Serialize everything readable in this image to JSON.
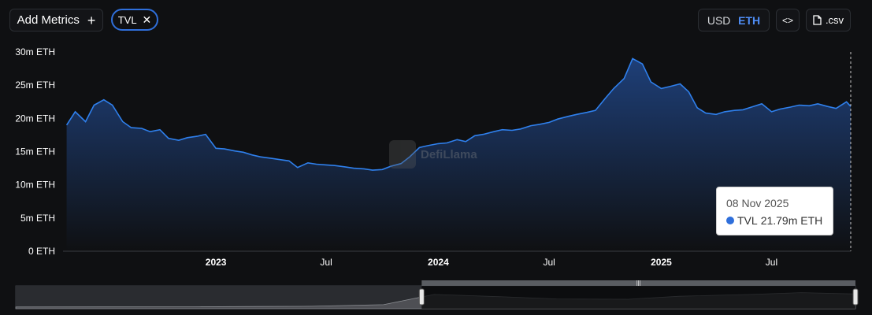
{
  "toolbar": {
    "add_metrics_label": "Add Metrics",
    "plus_glyph": "+",
    "metric_chip_label": "TVL",
    "remove_glyph": "✕",
    "currency_usd": "USD",
    "currency_eth": "ETH",
    "embed_glyph": "<>",
    "csv_label": ".csv"
  },
  "watermark_text": "DefiLlama",
  "tooltip": {
    "date": "08 Nov 2025",
    "series_name": "TVL",
    "value": "21.79m ETH"
  },
  "colors": {
    "line": "#2f80ed",
    "area_top": "#1e3f78",
    "area_bottom": "#0f1012",
    "accent": "#4f8ef7"
  },
  "chart_data": {
    "type": "area",
    "series": [
      {
        "name": "TVL",
        "unit": "m ETH",
        "x": [
          "2022-05-01",
          "2022-05-15",
          "2022-06-01",
          "2022-06-15",
          "2022-07-01",
          "2022-07-15",
          "2022-08-01",
          "2022-08-15",
          "2022-09-01",
          "2022-09-15",
          "2022-10-01",
          "2022-10-15",
          "2022-11-01",
          "2022-11-15",
          "2022-12-01",
          "2022-12-15",
          "2023-01-01",
          "2023-01-15",
          "2023-02-01",
          "2023-02-15",
          "2023-03-01",
          "2023-03-15",
          "2023-04-01",
          "2023-04-15",
          "2023-05-01",
          "2023-05-15",
          "2023-06-01",
          "2023-06-15",
          "2023-07-01",
          "2023-07-15",
          "2023-08-01",
          "2023-08-15",
          "2023-09-01",
          "2023-09-15",
          "2023-10-01",
          "2023-10-15",
          "2023-11-01",
          "2023-11-15",
          "2023-12-01",
          "2023-12-15",
          "2024-01-01",
          "2024-01-15",
          "2024-02-01",
          "2024-02-15",
          "2024-03-01",
          "2024-03-15",
          "2024-04-01",
          "2024-04-15",
          "2024-05-01",
          "2024-05-15",
          "2024-06-01",
          "2024-06-15",
          "2024-07-01",
          "2024-07-15",
          "2024-08-01",
          "2024-08-15",
          "2024-09-01",
          "2024-09-15",
          "2024-10-01",
          "2024-10-15",
          "2024-11-01",
          "2024-11-15",
          "2024-12-01",
          "2024-12-15",
          "2025-01-01",
          "2025-01-15",
          "2025-02-01",
          "2025-02-15",
          "2025-03-01",
          "2025-03-15",
          "2025-04-01",
          "2025-04-15",
          "2025-05-01",
          "2025-05-15",
          "2025-06-01",
          "2025-06-15",
          "2025-07-01",
          "2025-07-15",
          "2025-08-01",
          "2025-08-15",
          "2025-09-01",
          "2025-09-15",
          "2025-10-01",
          "2025-10-15",
          "2025-11-01",
          "2025-11-08"
        ],
        "values": [
          19.0,
          21.0,
          19.5,
          22.0,
          22.8,
          22.0,
          19.5,
          18.6,
          18.5,
          18.0,
          18.3,
          17.0,
          16.7,
          17.1,
          17.3,
          17.6,
          15.5,
          15.4,
          15.1,
          14.9,
          14.5,
          14.2,
          14.0,
          13.8,
          13.6,
          12.6,
          13.3,
          13.1,
          13.0,
          12.9,
          12.7,
          12.5,
          12.4,
          12.2,
          12.3,
          12.8,
          13.2,
          14.2,
          15.6,
          15.9,
          16.2,
          16.3,
          16.8,
          16.5,
          17.4,
          17.6,
          18.0,
          18.3,
          18.2,
          18.4,
          18.9,
          19.1,
          19.4,
          19.9,
          20.3,
          20.6,
          20.9,
          21.2,
          23.0,
          24.5,
          26.0,
          29.0,
          28.2,
          25.5,
          24.5,
          24.8,
          25.2,
          24.0,
          21.6,
          20.8,
          20.6,
          21.0,
          21.2,
          21.3,
          21.8,
          22.2,
          21.0,
          21.4,
          21.7,
          22.0,
          21.9,
          22.2,
          21.79,
          21.5,
          22.5,
          21.79
        ]
      }
    ],
    "yticks": [
      "0 ETH",
      "5m ETH",
      "10m ETH",
      "15m ETH",
      "20m ETH",
      "25m ETH",
      "30m ETH"
    ],
    "ylim": [
      0,
      30
    ],
    "xticks": [
      {
        "label": "2023",
        "date": "2023-01-01",
        "bold": true
      },
      {
        "label": "Jul",
        "date": "2023-07-01",
        "bold": false
      },
      {
        "label": "2024",
        "date": "2024-01-01",
        "bold": true
      },
      {
        "label": "Jul",
        "date": "2024-07-01",
        "bold": false
      },
      {
        "label": "2025",
        "date": "2025-01-01",
        "bold": true
      },
      {
        "label": "Jul",
        "date": "2025-07-01",
        "bold": false
      }
    ],
    "xlim": [
      "2022-04-25",
      "2025-11-08"
    ],
    "grid": false,
    "legend": "none"
  },
  "brush": {
    "selected_range": [
      "2022-04-25",
      "2025-11-08"
    ],
    "overview_x": [
      "2019-01-01",
      "2020-06-01",
      "2021-01-01",
      "2021-06-01",
      "2022-01-01",
      "2022-06-01",
      "2023-01-01",
      "2023-06-01",
      "2024-01-01",
      "2024-06-01",
      "2025-01-01",
      "2025-06-01",
      "2025-11-08"
    ],
    "overview_values": [
      0.3,
      0.5,
      1.0,
      1.5,
      4.0,
      21.0,
      17.0,
      13.5,
      13.0,
      18.0,
      21.0,
      24.0,
      21.8
    ]
  }
}
